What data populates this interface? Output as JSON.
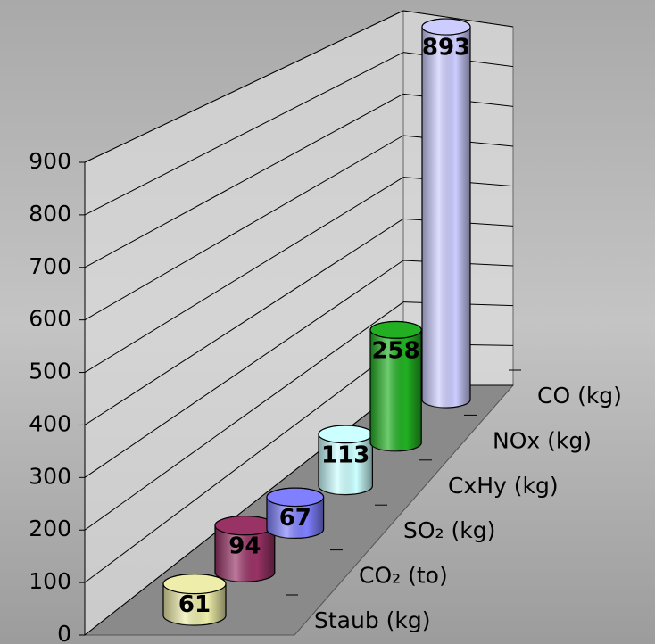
{
  "chart_data": {
    "type": "bar3d-cylinder",
    "categories": [
      "Staub (kg)",
      "CO₂ (to)",
      "SO₂ (kg)",
      "CxHy (kg)",
      "NOx (kg)",
      "CO (kg)"
    ],
    "values": [
      61,
      94,
      67,
      113,
      258,
      893
    ],
    "colors": [
      "#eeeeaa",
      "#993366",
      "#8080ff",
      "#ccffff",
      "#22b022",
      "#ccccff"
    ],
    "ylim": [
      0,
      900
    ],
    "yticks": [
      0,
      100,
      200,
      300,
      400,
      500,
      600,
      700,
      800,
      900
    ],
    "grid": true
  }
}
